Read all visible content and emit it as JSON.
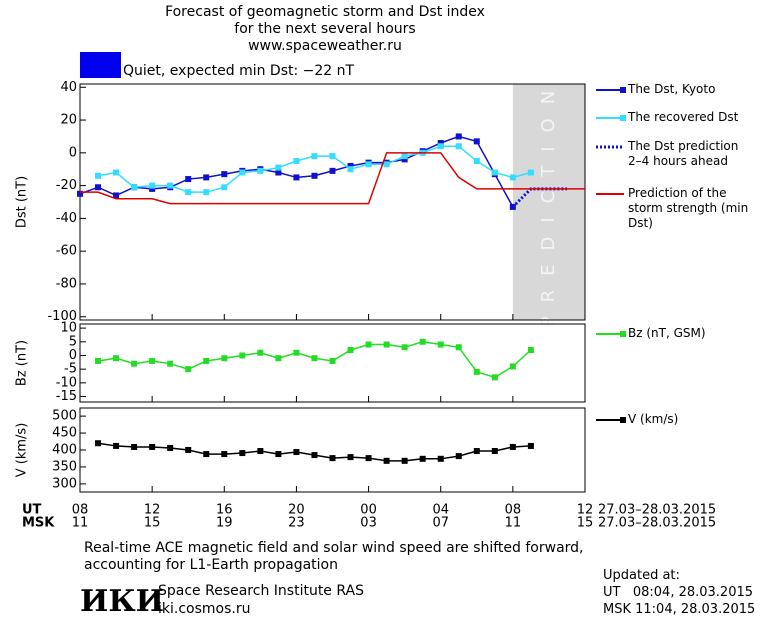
{
  "header": {
    "title_lines": [
      "Forecast of geomagnetic storm and Dst index",
      "for the next several hours",
      "www.spaceweather.ru"
    ],
    "status_text": "Quiet, expected min Dst: −22 nT",
    "status_color": "#0000ee"
  },
  "time_axis": {
    "xlim": [
      0,
      28
    ],
    "ut_label": "UT",
    "msk_label": "MSK",
    "ut_ticks": [
      {
        "value": 0,
        "label": "08"
      },
      {
        "value": 4,
        "label": "12"
      },
      {
        "value": 8,
        "label": "16"
      },
      {
        "value": 12,
        "label": "20"
      },
      {
        "value": 16,
        "label": "00"
      },
      {
        "value": 20,
        "label": "04"
      },
      {
        "value": 24,
        "label": "08"
      },
      {
        "value": 28,
        "label": "12"
      }
    ],
    "msk_ticks": [
      {
        "value": 0,
        "label": "11"
      },
      {
        "value": 4,
        "label": "15"
      },
      {
        "value": 8,
        "label": "19"
      },
      {
        "value": 12,
        "label": "23"
      },
      {
        "value": 16,
        "label": "03"
      },
      {
        "value": 20,
        "label": "07"
      },
      {
        "value": 24,
        "label": "11"
      },
      {
        "value": 28,
        "label": "15"
      }
    ],
    "ut_dates": "27.03–28.03.2015",
    "msk_dates": "27.03–28.03.2015"
  },
  "chart_data": [
    {
      "type": "line",
      "ylabel": "Dst (nT)",
      "ylim": [
        -102,
        42
      ],
      "yticks": [
        40,
        20,
        0,
        -20,
        -40,
        -60,
        -80,
        -100
      ],
      "prediction_zone": {
        "label": "PREDICTION",
        "from": 24,
        "to": 28
      },
      "series": [
        {
          "name": "The Dst, Kyoto",
          "color": "#1010d0",
          "marker": "square",
          "style": "solid",
          "x": [
            0,
            1,
            2,
            3,
            4,
            5,
            6,
            7,
            8,
            9,
            10,
            11,
            12,
            13,
            14,
            15,
            16,
            17,
            18,
            19,
            20,
            21,
            22,
            23,
            24
          ],
          "values": [
            -25,
            -21,
            -26,
            -21,
            -22,
            -21,
            -16,
            -15,
            -13,
            -11,
            -10,
            -12,
            -15,
            -14,
            -11,
            -8,
            -6,
            -6,
            -4,
            1,
            6,
            10,
            7,
            -13,
            -33
          ]
        },
        {
          "name": "The recovered Dst",
          "color": "#33ddff",
          "marker": "square",
          "style": "solid",
          "x": [
            1,
            2,
            3,
            4,
            5,
            6,
            7,
            8,
            9,
            10,
            11,
            12,
            13,
            14,
            15,
            16,
            17,
            18,
            19,
            20,
            21,
            22,
            23,
            24,
            25
          ],
          "values": [
            -14,
            -12,
            -21,
            -20,
            -20,
            -24,
            -24,
            -21,
            -12,
            -11,
            -9,
            -5,
            -2,
            -2,
            -10,
            -7,
            -7,
            -2,
            0,
            4,
            4,
            -5,
            -12,
            -15,
            -12
          ]
        },
        {
          "name": "The Dst prediction 2–4 hours ahead",
          "color": "#1010d0",
          "marker": "none",
          "style": "dotted",
          "x": [
            24,
            25,
            27
          ],
          "values": [
            -33,
            -22,
            -22
          ]
        },
        {
          "name": "Prediction of the storm strength (min Dst)",
          "color": "#dd0000",
          "marker": "none",
          "style": "solid",
          "x": [
            0,
            1,
            2,
            3,
            4,
            5,
            6,
            7,
            8,
            9,
            10,
            11,
            12,
            13,
            14,
            15,
            16,
            17,
            18,
            19,
            20,
            21,
            22,
            23,
            24,
            25,
            26,
            27,
            28
          ],
          "values": [
            -24,
            -24,
            -28,
            -28,
            -28,
            -31,
            -31,
            -31,
            -31,
            -31,
            -31,
            -31,
            -31,
            -31,
            -31,
            -31,
            -31,
            0,
            0,
            0,
            0,
            -15,
            -22,
            -22,
            -22,
            -22,
            -22,
            -22,
            -22
          ]
        }
      ]
    },
    {
      "type": "line",
      "ylabel": "Bz (nT)",
      "ylim": [
        -17,
        11.5
      ],
      "yticks": [
        10,
        5,
        0,
        -5,
        -10,
        -15
      ],
      "series": [
        {
          "name": "Bz (nT, GSM)",
          "color": "#22dd22",
          "marker": "square",
          "style": "solid",
          "x": [
            1,
            2,
            3,
            4,
            5,
            6,
            7,
            8,
            9,
            10,
            11,
            12,
            13,
            14,
            15,
            16,
            17,
            18,
            19,
            20,
            21,
            22,
            23,
            24,
            25
          ],
          "values": [
            -2,
            -1,
            -3,
            -2,
            -3,
            -5,
            -2,
            -1,
            0,
            1,
            -1,
            1,
            -1,
            -2,
            2,
            4,
            4,
            3,
            5,
            4,
            3,
            -6,
            -8,
            -4,
            2
          ]
        }
      ]
    },
    {
      "type": "line",
      "ylabel": "V (km/s)",
      "ylim": [
        276,
        524
      ],
      "yticks": [
        500,
        450,
        400,
        350,
        300
      ],
      "series": [
        {
          "name": "V (km/s)",
          "color": "#000000",
          "marker": "square",
          "style": "solid",
          "x": [
            1,
            2,
            3,
            4,
            5,
            6,
            7,
            8,
            9,
            10,
            11,
            12,
            13,
            14,
            15,
            16,
            17,
            18,
            19,
            20,
            21,
            22,
            23,
            24,
            25
          ],
          "values": [
            420,
            412,
            409,
            409,
            406,
            400,
            388,
            388,
            391,
            397,
            388,
            394,
            385,
            376,
            379,
            376,
            368,
            368,
            374,
            374,
            382,
            397,
            397,
            409,
            412
          ]
        }
      ]
    }
  ],
  "footer": {
    "note": "Real-time ACE magnetic field and solar wind speed are shifted forward, accounting for L1-Earth propagation",
    "logo": "ИКИ",
    "institute": "Space Research Institute RAS",
    "website": "iki.cosmos.ru",
    "updated_label": "Updated at:",
    "updated_ut": "UT   08:04, 28.03.2015",
    "updated_msk": "MSK 11:04, 28.03.2015"
  }
}
